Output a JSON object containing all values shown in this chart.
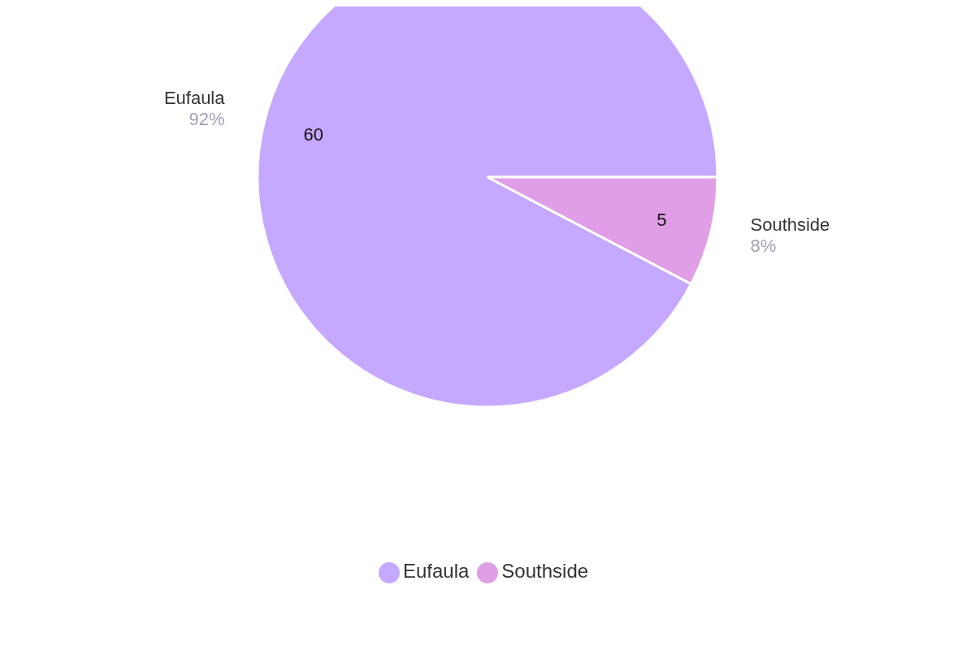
{
  "chart_data": {
    "type": "pie",
    "categories": [
      "Eufaula",
      "Southside"
    ],
    "values": [
      60,
      5
    ],
    "colors": [
      "#c5a8ff",
      "#e09ee6"
    ],
    "data_labels": true,
    "annotations": [
      "92%",
      "8%"
    ],
    "legend": "bottom"
  }
}
